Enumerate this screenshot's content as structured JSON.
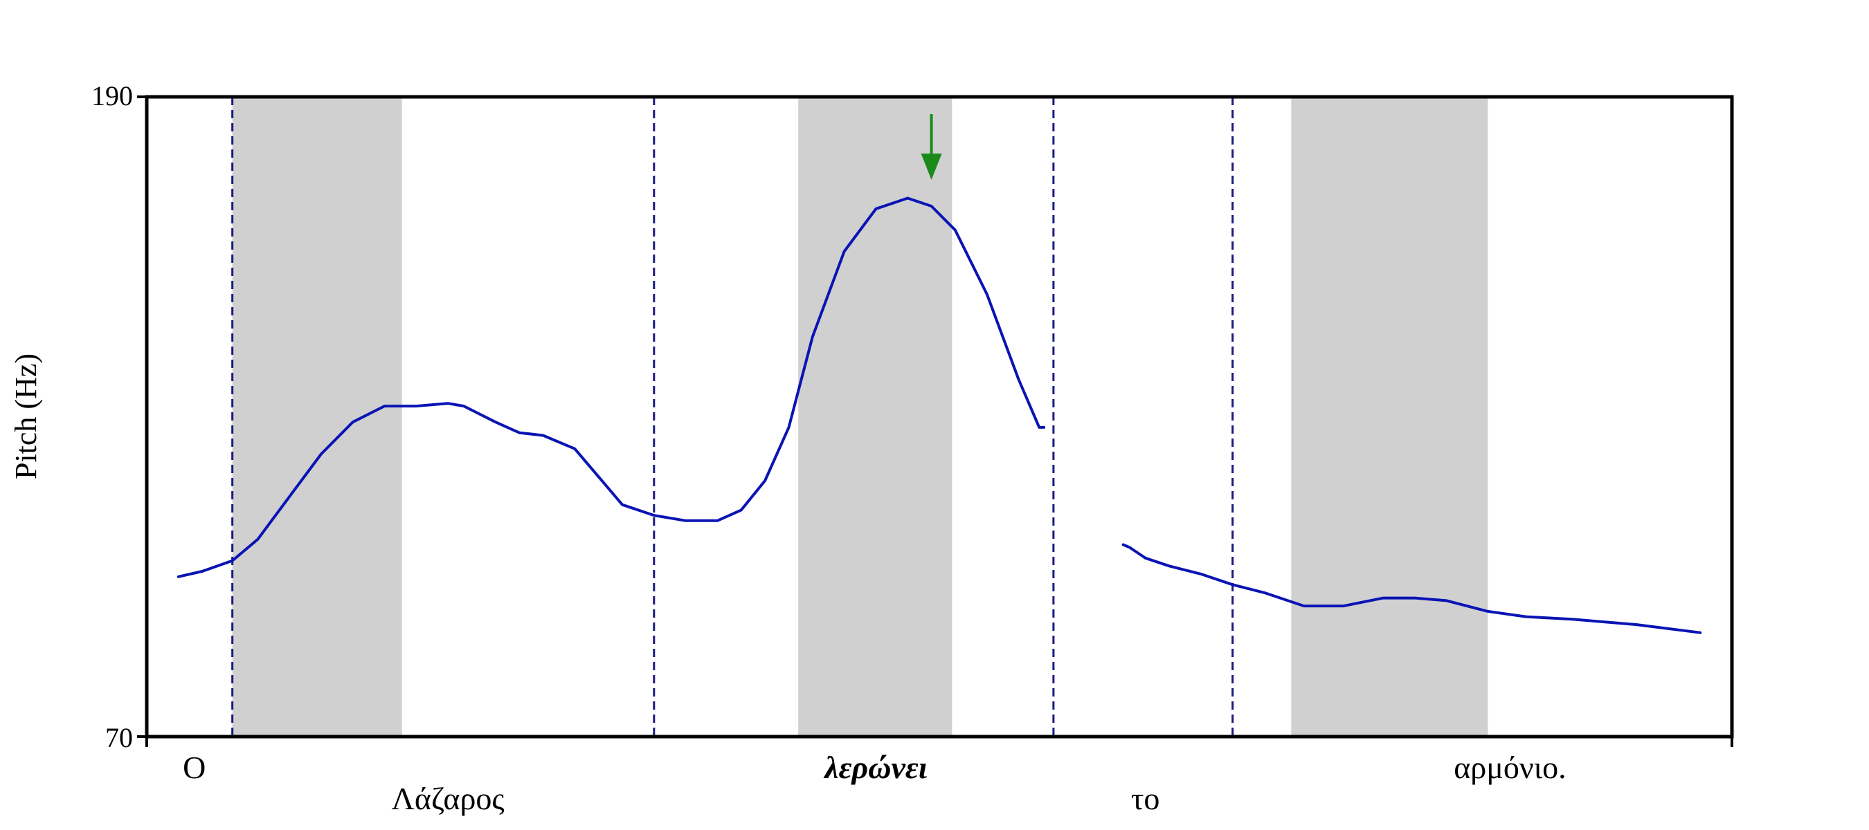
{
  "chart_data": {
    "type": "line",
    "ylabel": "Pitch (Hz)",
    "xlabel": "",
    "title": "",
    "ylim": [
      70,
      190
    ],
    "y_ticks": [
      "190",
      "70"
    ],
    "grid": false,
    "legend": "none",
    "colors": {
      "contour": "#0a14b4",
      "boundary": "#1a1a80",
      "shade": "#d0d0d0",
      "marker": "#1a8a1a"
    },
    "words": [
      {
        "text": "Ο",
        "row": 1,
        "x": 0.03,
        "bold": false
      },
      {
        "text": "Λάζαρος",
        "row": 2,
        "x": 0.19,
        "bold": false
      },
      {
        "text": "λερώνει",
        "row": 1,
        "x": 0.46,
        "bold": true
      },
      {
        "text": "το",
        "row": 2,
        "x": 0.63,
        "bold": false
      },
      {
        "text": "αρμόνιο.",
        "row": 1,
        "x": 0.86,
        "bold": false
      }
    ],
    "boundaries": [
      0.054,
      0.32,
      0.572,
      0.685
    ],
    "shaded_regions": [
      [
        0.054,
        0.161
      ],
      [
        0.411,
        0.508
      ],
      [
        0.722,
        0.846
      ]
    ],
    "peak_marker": {
      "x": 0.495,
      "y": 182,
      "label": "peak-arrow"
    },
    "series": [
      {
        "segment": 1,
        "x": [
          0.02,
          0.035,
          0.054,
          0.07,
          0.09,
          0.11,
          0.13,
          0.15,
          0.17,
          0.19,
          0.2,
          0.22,
          0.235,
          0.25,
          0.27,
          0.29,
          0.3,
          0.32,
          0.34,
          0.36,
          0.375,
          0.39,
          0.405,
          0.42,
          0.44,
          0.46,
          0.48,
          0.495,
          0.51,
          0.53,
          0.55,
          0.563,
          0.566
        ],
        "y": [
          100,
          101,
          103,
          107,
          115,
          123,
          129,
          132,
          132,
          132.5,
          132,
          129,
          127,
          126.5,
          124,
          117,
          113.5,
          111.5,
          110.5,
          110.5,
          112.5,
          118,
          128,
          145,
          161,
          169,
          171,
          169.5,
          165,
          153,
          137,
          128,
          128
        ]
      },
      {
        "segment": 2,
        "x": [
          0.616,
          0.62,
          0.63,
          0.645,
          0.665,
          0.685,
          0.705,
          0.73,
          0.755,
          0.78,
          0.8,
          0.82,
          0.846,
          0.87,
          0.9,
          0.94,
          0.98
        ],
        "y": [
          106,
          105.5,
          103.5,
          102,
          100.5,
          98.5,
          97,
          94.5,
          94.5,
          96,
          96,
          95.5,
          93.5,
          92.5,
          92,
          91,
          89.5
        ]
      }
    ]
  }
}
